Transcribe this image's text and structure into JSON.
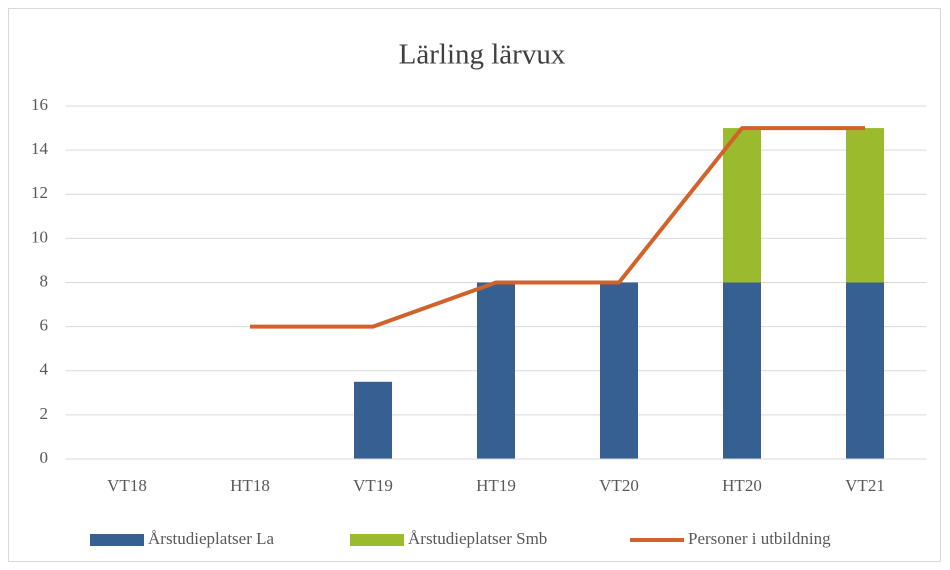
{
  "chart_data": {
    "type": "bar",
    "stacked": true,
    "title": "Lärling lärvux",
    "categories": [
      "VT18",
      "HT18",
      "VT19",
      "HT19",
      "VT20",
      "HT20",
      "VT21"
    ],
    "series": [
      {
        "name": "Årstudieplatser La",
        "type": "bar",
        "color": "#376092",
        "values": [
          null,
          null,
          3.5,
          8,
          8,
          8,
          8
        ]
      },
      {
        "name": "Årstudieplatser Smb",
        "type": "bar",
        "color": "#9bbb2e",
        "values": [
          null,
          null,
          null,
          null,
          null,
          7,
          7
        ]
      },
      {
        "name": "Personer i utbildning",
        "type": "line",
        "color": "#d0622a",
        "values": [
          null,
          6,
          6,
          8,
          8,
          15,
          15
        ]
      }
    ],
    "ylim": [
      0,
      16
    ],
    "yticks": [
      0,
      2,
      4,
      6,
      8,
      10,
      12,
      14,
      16
    ],
    "grid": true,
    "legend": "bottom"
  }
}
